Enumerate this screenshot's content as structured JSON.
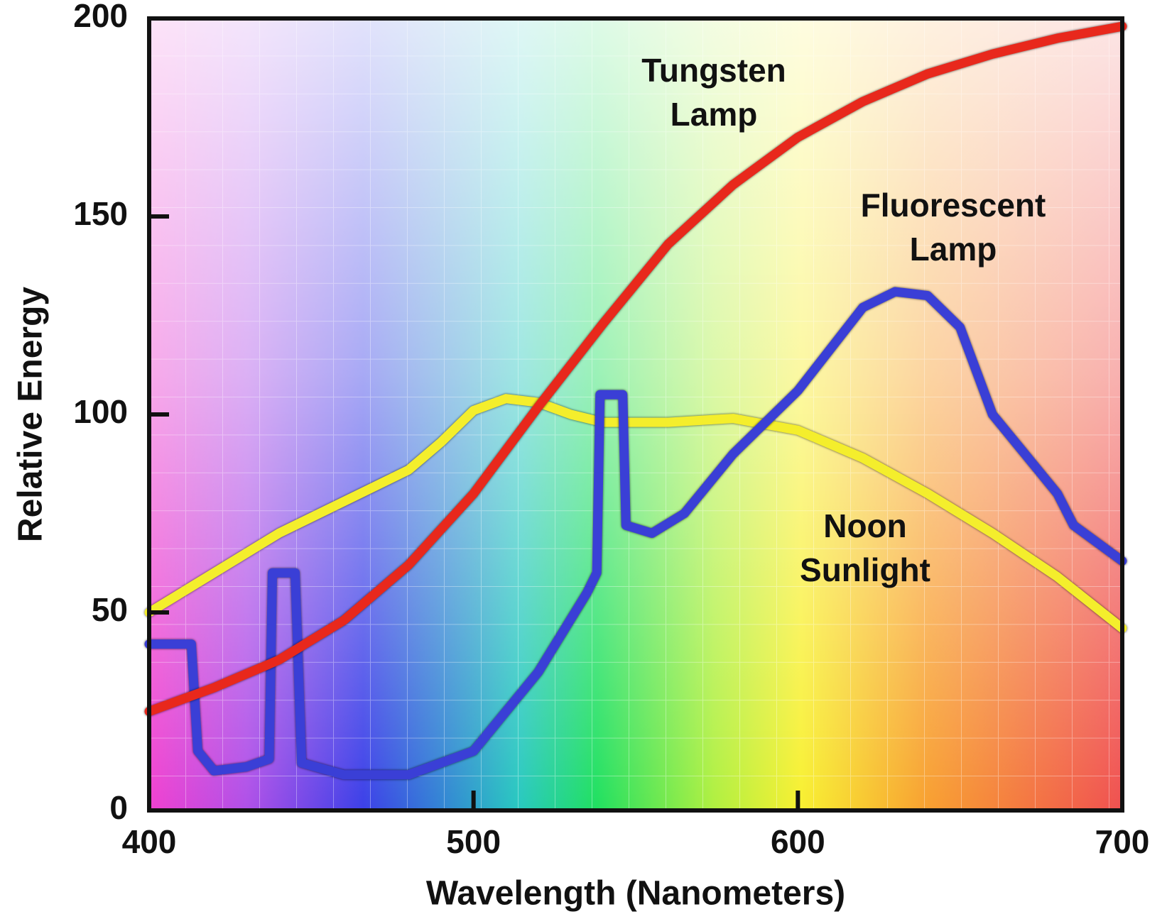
{
  "chart_data": {
    "type": "line",
    "xlabel": "Wavelength (Nanometers)",
    "ylabel": "Relative Energy",
    "xlim": [
      400,
      700
    ],
    "xticks": [
      400,
      500,
      600,
      700
    ],
    "ylim": [
      0,
      200
    ],
    "yticks": [
      0,
      50,
      100,
      150,
      200
    ],
    "annotations": [
      {
        "lines": [
          "Tungsten",
          "Lamp"
        ]
      },
      {
        "lines": [
          "Fluorescent",
          "Lamp"
        ]
      },
      {
        "lines": [
          "Noon",
          "Sunlight"
        ]
      }
    ],
    "series": [
      {
        "color": "#e8281c",
        "x": [
          400,
          420,
          440,
          460,
          480,
          500,
          520,
          540,
          560,
          580,
          600,
          620,
          640,
          660,
          680,
          700
        ],
        "values": [
          25,
          31,
          38,
          48,
          62,
          80,
          102,
          123,
          143,
          158,
          170,
          179,
          186,
          191,
          195,
          198
        ]
      },
      {
        "color": "#f4ee2c",
        "x": [
          400,
          420,
          440,
          460,
          480,
          490,
          500,
          510,
          520,
          530,
          540,
          560,
          580,
          600,
          620,
          640,
          660,
          680,
          700
        ],
        "values": [
          50,
          60,
          70,
          78,
          86,
          93,
          101,
          104,
          103,
          100,
          98,
          98,
          99,
          96,
          89,
          80,
          70,
          59,
          46
        ]
      },
      {
        "color": "#3a3fd6",
        "x": [
          400,
          413,
          415,
          420,
          430,
          437,
          438,
          445,
          447,
          460,
          480,
          500,
          520,
          535,
          538,
          539,
          546,
          547,
          555,
          565,
          580,
          600,
          620,
          630,
          640,
          650,
          660,
          670,
          680,
          685,
          700
        ],
        "values": [
          42,
          42,
          15,
          10,
          11,
          13,
          60,
          60,
          12,
          9,
          9,
          15,
          35,
          55,
          60,
          105,
          105,
          72,
          70,
          75,
          90,
          106,
          127,
          131,
          130,
          122,
          100,
          90,
          80,
          72,
          63
        ]
      }
    ]
  }
}
